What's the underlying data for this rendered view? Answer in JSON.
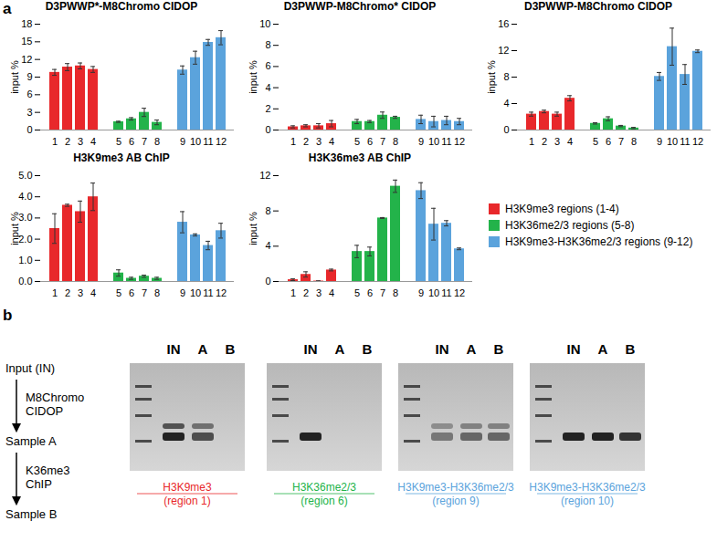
{
  "panel_labels": [
    "a",
    "b"
  ],
  "chart_data": [
    {
      "type": "bar",
      "title": "D3PWWP*-M8Chromo CIDOP",
      "ylabel": "input %",
      "categories": [
        "1",
        "2",
        "3",
        "4",
        null,
        "5",
        "6",
        "7",
        "8",
        null,
        "9",
        "10",
        "11",
        "12"
      ],
      "ylim": [
        0,
        18
      ],
      "yticks": [
        0,
        3,
        6,
        9,
        12,
        15,
        18
      ],
      "series": [
        {
          "name": "H3K9me3 regions (1-4)",
          "color": "#e8282b",
          "values": [
            9.8,
            10.7,
            10.9,
            10.3,
            null,
            null,
            null,
            null,
            null,
            null,
            null,
            null,
            null,
            null
          ],
          "errors": [
            0.5,
            0.6,
            0.5,
            0.5,
            null,
            null,
            null,
            null,
            null,
            null,
            null,
            null,
            null,
            null
          ]
        },
        {
          "name": "H3K36me2/3 regions (5-8)",
          "color": "#23b34a",
          "values": [
            null,
            null,
            null,
            null,
            null,
            1.4,
            1.9,
            3.0,
            1.3,
            null,
            null,
            null,
            null,
            null
          ],
          "errors": [
            null,
            null,
            null,
            null,
            null,
            0.1,
            0.2,
            0.7,
            0.4,
            null,
            null,
            null,
            null,
            null
          ]
        },
        {
          "name": "H3K9me3-H3K36me2/3 regions (9-12)",
          "color": "#5ba3dc",
          "values": [
            null,
            null,
            null,
            null,
            null,
            null,
            null,
            null,
            null,
            null,
            10.2,
            12.3,
            14.9,
            15.7
          ],
          "errors": [
            null,
            null,
            null,
            null,
            null,
            null,
            null,
            null,
            null,
            null,
            0.7,
            1.1,
            0.5,
            1.2
          ]
        }
      ]
    },
    {
      "type": "bar",
      "title": "D3PWWP-M8Chromo* CIDOP",
      "ylabel": "input %",
      "categories": [
        "1",
        "2",
        "3",
        "4",
        null,
        "5",
        "6",
        "7",
        "8",
        null,
        "9",
        "10",
        "11",
        "12"
      ],
      "ylim": [
        0,
        10
      ],
      "yticks": [
        0,
        2,
        4,
        6,
        8,
        10
      ],
      "series": [
        {
          "name": "H3K9me3 regions (1-4)",
          "color": "#e8282b",
          "values": [
            0.3,
            0.4,
            0.4,
            0.6,
            null,
            null,
            null,
            null,
            null,
            null,
            null,
            null,
            null,
            null
          ],
          "errors": [
            0.1,
            0.1,
            0.2,
            0.3,
            null,
            null,
            null,
            null,
            null,
            null,
            null,
            null,
            null,
            null
          ]
        },
        {
          "name": "H3K36me2/3 regions (5-8)",
          "color": "#23b34a",
          "values": [
            null,
            null,
            null,
            null,
            null,
            0.8,
            0.8,
            1.4,
            1.2,
            null,
            null,
            null,
            null,
            null
          ],
          "errors": [
            null,
            null,
            null,
            null,
            null,
            0.2,
            0.1,
            0.3,
            0.1,
            null,
            null,
            null,
            null,
            null
          ]
        },
        {
          "name": "H3K9me3-H3K36me2/3 regions (9-12)",
          "color": "#5ba3dc",
          "values": [
            null,
            null,
            null,
            null,
            null,
            null,
            null,
            null,
            null,
            null,
            1.0,
            0.8,
            0.9,
            0.8
          ],
          "errors": [
            null,
            null,
            null,
            null,
            null,
            null,
            null,
            null,
            null,
            null,
            0.4,
            0.5,
            0.4,
            0.3
          ]
        }
      ]
    },
    {
      "type": "bar",
      "title": "D3PWWP-M8Chromo CIDOP",
      "ylabel": "input %",
      "categories": [
        "1",
        "2",
        "3",
        "4",
        null,
        "5",
        "6",
        "7",
        "8",
        null,
        "9",
        "10",
        "11",
        "12"
      ],
      "ylim": [
        0,
        16
      ],
      "yticks": [
        0,
        4,
        8,
        12,
        16
      ],
      "series": [
        {
          "name": "H3K9me3 regions (1-4)",
          "color": "#e8282b",
          "values": [
            2.4,
            2.8,
            2.4,
            4.8,
            null,
            null,
            null,
            null,
            null,
            null,
            null,
            null,
            null,
            null
          ],
          "errors": [
            0.3,
            0.2,
            0.3,
            0.4,
            null,
            null,
            null,
            null,
            null,
            null,
            null,
            null,
            null,
            null
          ]
        },
        {
          "name": "H3K36me2/3 regions (5-8)",
          "color": "#23b34a",
          "values": [
            null,
            null,
            null,
            null,
            null,
            1.0,
            1.7,
            0.6,
            0.3,
            null,
            null,
            null,
            null,
            null
          ],
          "errors": [
            null,
            null,
            null,
            null,
            null,
            0.1,
            0.3,
            0.1,
            0.1,
            null,
            null,
            null,
            null,
            null
          ]
        },
        {
          "name": "H3K9me3-H3K36me2/3 regions (9-12)",
          "color": "#5ba3dc",
          "values": [
            null,
            null,
            null,
            null,
            null,
            null,
            null,
            null,
            null,
            null,
            8.1,
            12.6,
            8.4,
            11.9
          ],
          "errors": [
            null,
            null,
            null,
            null,
            null,
            null,
            null,
            null,
            null,
            null,
            0.6,
            2.8,
            1.5,
            0.2
          ]
        }
      ]
    },
    {
      "type": "bar",
      "title": "H3K9me3 AB ChIP",
      "ylabel": "input %",
      "categories": [
        "1",
        "2",
        "3",
        "4",
        null,
        "5",
        "6",
        "7",
        "8",
        null,
        "9",
        "10",
        "11",
        "12"
      ],
      "ylim": [
        0,
        5
      ],
      "yticks": [
        0,
        1,
        2,
        3,
        4,
        5
      ],
      "series": [
        {
          "name": "H3K9me3 regions (1-4)",
          "color": "#e8282b",
          "values": [
            2.5,
            3.6,
            3.3,
            4.0,
            null,
            null,
            null,
            null,
            null,
            null,
            null,
            null,
            null,
            null
          ],
          "errors": [
            0.7,
            0.05,
            0.5,
            0.65,
            null,
            null,
            null,
            null,
            null,
            null,
            null,
            null,
            null,
            null
          ]
        },
        {
          "name": "H3K36me2/3 regions (5-8)",
          "color": "#23b34a",
          "values": [
            null,
            null,
            null,
            null,
            null,
            0.4,
            0.15,
            0.25,
            0.15,
            null,
            null,
            null,
            null,
            null
          ],
          "errors": [
            null,
            null,
            null,
            null,
            null,
            0.15,
            0.05,
            0.05,
            0.05,
            null,
            null,
            null,
            null,
            null
          ]
        },
        {
          "name": "H3K9me3-H3K36me2/3 regions (9-12)",
          "color": "#5ba3dc",
          "values": [
            null,
            null,
            null,
            null,
            null,
            null,
            null,
            null,
            null,
            null,
            2.8,
            2.2,
            1.7,
            2.4
          ],
          "errors": [
            null,
            null,
            null,
            null,
            null,
            null,
            null,
            null,
            null,
            null,
            0.5,
            0.05,
            0.2,
            0.35
          ]
        }
      ]
    },
    {
      "type": "bar",
      "title": "H3K36me3 AB ChIP",
      "ylabel": "input %",
      "categories": [
        "1",
        "2",
        "3",
        "4",
        null,
        "5",
        "6",
        "7",
        "8",
        null,
        "9",
        "10",
        "11",
        "12"
      ],
      "ylim": [
        0,
        12
      ],
      "yticks": [
        0,
        4,
        8,
        12
      ],
      "series": [
        {
          "name": "H3K9me3 regions (1-4)",
          "color": "#e8282b",
          "values": [
            0.2,
            0.8,
            0.05,
            1.3,
            null,
            null,
            null,
            null,
            null,
            null,
            null,
            null,
            null,
            null
          ],
          "errors": [
            0.1,
            0.3,
            0.02,
            0.1,
            null,
            null,
            null,
            null,
            null,
            null,
            null,
            null,
            null,
            null
          ]
        },
        {
          "name": "H3K36me2/3 regions (5-8)",
          "color": "#23b34a",
          "values": [
            null,
            null,
            null,
            null,
            null,
            3.4,
            3.4,
            7.2,
            10.8,
            null,
            null,
            null,
            null,
            null
          ],
          "errors": [
            null,
            null,
            null,
            null,
            null,
            0.7,
            0.5,
            0.05,
            0.7,
            null,
            null,
            null,
            null,
            null
          ]
        },
        {
          "name": "H3K9me3-H3K36me2/3 regions (9-12)",
          "color": "#5ba3dc",
          "values": [
            null,
            null,
            null,
            null,
            null,
            null,
            null,
            null,
            null,
            null,
            10.3,
            6.5,
            6.6,
            3.7
          ],
          "errors": [
            null,
            null,
            null,
            null,
            null,
            null,
            null,
            null,
            null,
            null,
            0.9,
            1.8,
            0.3,
            0.1
          ]
        }
      ]
    }
  ],
  "gel_panel": {
    "flow": {
      "steps": [
        "Input (IN)",
        "Sample A",
        "Sample B"
      ],
      "arrows": [
        [
          "M8Chromo",
          "CIDOP"
        ],
        [
          "K36me3",
          "ChIP"
        ]
      ]
    },
    "lane_labels": [
      "IN",
      "A",
      "B"
    ],
    "gels": [
      {
        "caption": [
          "H3K9me3",
          "(region 1)"
        ],
        "color": "#e8282b",
        "band_intensity": [
          1,
          0.75,
          0
        ]
      },
      {
        "caption": [
          "H3K36me2/3",
          "(region 6)"
        ],
        "color": "#23b34a",
        "band_intensity": [
          1,
          0,
          0
        ]
      },
      {
        "caption": [
          "H3K9me3-H3K36me2/3",
          "(region 9)"
        ],
        "color": "#5ba3dc",
        "band_intensity": [
          0.5,
          0.6,
          0.6
        ]
      },
      {
        "caption": [
          "H3K9me3-H3K36me2/3",
          "(region 10)"
        ],
        "color": "#5ba3dc",
        "band_intensity": [
          1,
          1,
          0.9
        ]
      }
    ]
  }
}
